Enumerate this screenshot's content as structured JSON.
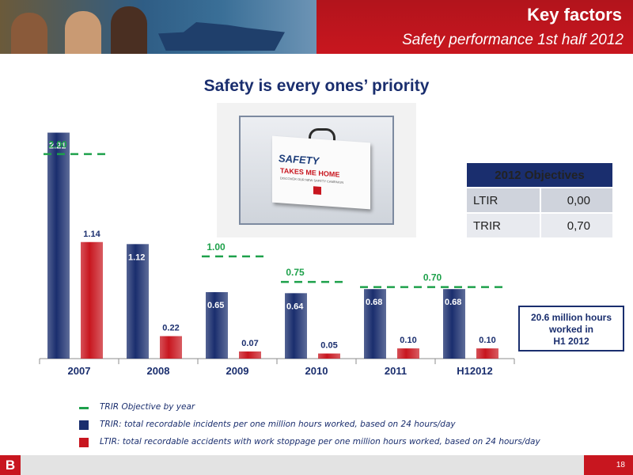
{
  "header": {
    "title": "Key factors",
    "subtitle": "Safety performance 1st half 2012"
  },
  "headline": "Safety is every ones’ priority",
  "photo": {
    "case_text_1": "SAFETY",
    "case_text_2": "TAKES ME HOME",
    "case_text_3": "DISCOVER OUR NEW SAFETY CAMPAIGN"
  },
  "objectives": {
    "title": "2012 Objectives",
    "rows": [
      {
        "label": "LTIR",
        "value": "0,00"
      },
      {
        "label": "TRIR",
        "value": "0,70"
      }
    ]
  },
  "hours_box": {
    "line1": "20.6 million hours",
    "line2": "worked in",
    "line3": "H1 2012"
  },
  "chart_data": {
    "type": "bar",
    "categories": [
      "2007",
      "2008",
      "2009",
      "2010",
      "2011",
      "H12012"
    ],
    "series": [
      {
        "name": "TRIR",
        "color": "#1a2e6e",
        "values": [
          2.21,
          1.12,
          0.65,
          0.64,
          0.68,
          0.68
        ],
        "labels": [
          "2.21",
          "1.12",
          "0.65",
          "0.64",
          "0.68",
          "0.68"
        ]
      },
      {
        "name": "LTIR",
        "color": "#c8161f",
        "values": [
          1.14,
          0.22,
          0.07,
          0.05,
          0.1,
          0.1
        ],
        "labels": [
          "1.14",
          "0.22",
          "0.07",
          "0.05",
          "0.10",
          "0.10"
        ]
      }
    ],
    "objectives": [
      {
        "label": "2.00",
        "value": 2.0,
        "categories": [
          "2007"
        ]
      },
      {
        "label": "1.00",
        "value": 1.0,
        "categories": [
          "2009"
        ]
      },
      {
        "label": "0.75",
        "value": 0.75,
        "categories": [
          "2010"
        ]
      },
      {
        "label": "0.70",
        "value": 0.7,
        "categories": [
          "2011",
          "H12012"
        ]
      }
    ],
    "objective_color": "#1ea14b",
    "ylim": [
      0,
      2.4
    ],
    "grid": false,
    "legend_position": "bottom"
  },
  "legend": [
    {
      "symbol": "dash",
      "text": "TRIR Objective by year"
    },
    {
      "symbol": "navy",
      "text": "TRIR: total recordable incidents per one million hours worked, based on 24 hours/day"
    },
    {
      "symbol": "red",
      "text": "LTIR: total recordable accidents with work stoppage per one million hours worked, based on 24 hours/day"
    }
  ],
  "footer": {
    "logo": "B",
    "page": "18"
  }
}
